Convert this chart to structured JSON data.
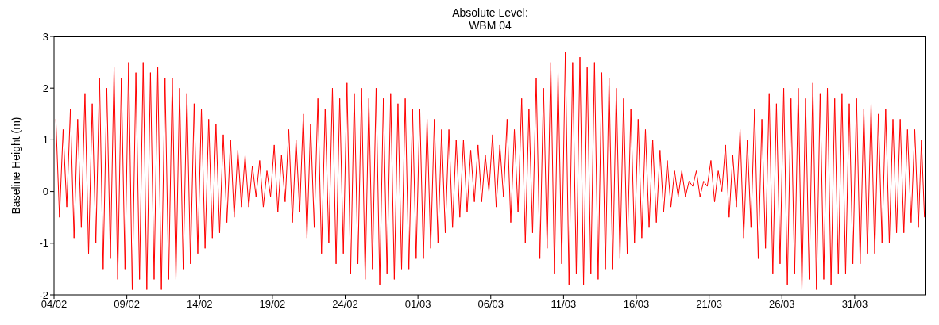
{
  "chart_data": {
    "type": "line",
    "title": "Absolute Level:",
    "subtitle": "WBM 04",
    "ylabel": "Baseline Height (m)",
    "line_style": "solid",
    "xlim": [
      "--02-04",
      "--04-04T22:00"
    ],
    "xticks": [
      {
        "value": "--02-04",
        "label": "04/02"
      },
      {
        "value": "--02-09",
        "label": "09/02"
      },
      {
        "value": "--02-14",
        "label": "14/02"
      },
      {
        "value": "--02-19",
        "label": "19/02"
      },
      {
        "value": "--02-24",
        "label": "24/02"
      },
      {
        "value": "--03-01",
        "label": "01/03"
      },
      {
        "value": "--03-06",
        "label": "06/03"
      },
      {
        "value": "--03-11",
        "label": "11/03"
      },
      {
        "value": "--03-16",
        "label": "16/03"
      },
      {
        "value": "--03-21",
        "label": "21/03"
      },
      {
        "value": "--03-26",
        "label": "26/03"
      },
      {
        "value": "--03-31",
        "label": "31/03"
      }
    ],
    "ylim": [
      -2,
      3
    ],
    "yticks": [
      -2,
      -1,
      0,
      1,
      2,
      3
    ],
    "x": [
      "--02-04T03:00",
      "--02-04T09:00",
      "--02-04T15:00",
      "--02-04T21:00",
      "--02-05T03:00",
      "--02-05T09:00",
      "--02-05T15:00",
      "--02-05T21:00",
      "--02-06T03:00",
      "--02-06T09:00",
      "--02-06T15:00",
      "--02-06T21:00",
      "--02-07T03:00",
      "--02-07T09:00",
      "--02-07T15:00",
      "--02-07T21:00",
      "--02-08T03:00",
      "--02-08T09:00",
      "--02-08T15:00",
      "--02-08T21:00",
      "--02-09T03:00",
      "--02-09T09:00",
      "--02-09T15:00",
      "--02-09T21:00",
      "--02-10T03:00",
      "--02-10T09:00",
      "--02-10T15:00",
      "--02-10T21:00",
      "--02-11T03:00",
      "--02-11T09:00",
      "--02-11T15:00",
      "--02-11T21:00",
      "--02-12T03:00",
      "--02-12T09:00",
      "--02-12T15:00",
      "--02-12T21:00",
      "--02-13T03:00",
      "--02-13T09:00",
      "--02-13T15:00",
      "--02-13T21:00",
      "--02-14T03:00",
      "--02-14T09:00",
      "--02-14T15:00",
      "--02-14T21:00",
      "--02-15T03:00",
      "--02-15T09:00",
      "--02-15T15:00",
      "--02-15T21:00",
      "--02-16T03:00",
      "--02-16T09:00",
      "--02-16T15:00",
      "--02-16T21:00",
      "--02-17T03:00",
      "--02-17T09:00",
      "--02-17T15:00",
      "--02-17T21:00",
      "--02-18T03:00",
      "--02-18T09:00",
      "--02-18T15:00",
      "--02-18T21:00",
      "--02-19T03:00",
      "--02-19T09:00",
      "--02-19T15:00",
      "--02-19T21:00",
      "--02-20T03:00",
      "--02-20T09:00",
      "--02-20T15:00",
      "--02-20T21:00",
      "--02-21T03:00",
      "--02-21T09:00",
      "--02-21T15:00",
      "--02-21T21:00",
      "--02-22T03:00",
      "--02-22T09:00",
      "--02-22T15:00",
      "--02-22T21:00",
      "--02-23T03:00",
      "--02-23T09:00",
      "--02-23T15:00",
      "--02-23T21:00",
      "--02-24T03:00",
      "--02-24T09:00",
      "--02-24T15:00",
      "--02-24T21:00",
      "--02-25T03:00",
      "--02-25T09:00",
      "--02-25T15:00",
      "--02-25T21:00",
      "--02-26T03:00",
      "--02-26T09:00",
      "--02-26T15:00",
      "--02-26T21:00",
      "--02-27T03:00",
      "--02-27T09:00",
      "--02-27T15:00",
      "--02-27T21:00",
      "--02-28T03:00",
      "--02-28T09:00",
      "--02-28T15:00",
      "--02-28T21:00",
      "--03-01T03:00",
      "--03-01T09:00",
      "--03-01T15:00",
      "--03-01T21:00",
      "--03-02T03:00",
      "--03-02T09:00",
      "--03-02T15:00",
      "--03-02T21:00",
      "--03-03T03:00",
      "--03-03T09:00",
      "--03-03T15:00",
      "--03-03T21:00",
      "--03-04T03:00",
      "--03-04T09:00",
      "--03-04T15:00",
      "--03-04T21:00",
      "--03-05T03:00",
      "--03-05T09:00",
      "--03-05T15:00",
      "--03-05T21:00",
      "--03-06T03:00",
      "--03-06T09:00",
      "--03-06T15:00",
      "--03-06T21:00",
      "--03-07T03:00",
      "--03-07T09:00",
      "--03-07T15:00",
      "--03-07T21:00",
      "--03-08T03:00",
      "--03-08T09:00",
      "--03-08T15:00",
      "--03-08T21:00",
      "--03-09T03:00",
      "--03-09T09:00",
      "--03-09T15:00",
      "--03-09T21:00",
      "--03-10T03:00",
      "--03-10T09:00",
      "--03-10T15:00",
      "--03-10T21:00",
      "--03-11T03:00",
      "--03-11T09:00",
      "--03-11T15:00",
      "--03-11T21:00",
      "--03-12T03:00",
      "--03-12T09:00",
      "--03-12T15:00",
      "--03-12T21:00",
      "--03-13T03:00",
      "--03-13T09:00",
      "--03-13T15:00",
      "--03-13T21:00",
      "--03-14T03:00",
      "--03-14T09:00",
      "--03-14T15:00",
      "--03-14T21:00",
      "--03-15T03:00",
      "--03-15T09:00",
      "--03-15T15:00",
      "--03-15T21:00",
      "--03-16T03:00",
      "--03-16T09:00",
      "--03-16T15:00",
      "--03-16T21:00",
      "--03-17T03:00",
      "--03-17T09:00",
      "--03-17T15:00",
      "--03-17T21:00",
      "--03-18T03:00",
      "--03-18T09:00",
      "--03-18T15:00",
      "--03-18T21:00",
      "--03-19T03:00",
      "--03-19T09:00",
      "--03-19T15:00",
      "--03-19T21:00",
      "--03-20T03:00",
      "--03-20T09:00",
      "--03-20T15:00",
      "--03-20T21:00",
      "--03-21T03:00",
      "--03-21T09:00",
      "--03-21T15:00",
      "--03-21T21:00",
      "--03-22T03:00",
      "--03-22T09:00",
      "--03-22T15:00",
      "--03-22T21:00",
      "--03-23T03:00",
      "--03-23T09:00",
      "--03-23T15:00",
      "--03-23T21:00",
      "--03-24T03:00",
      "--03-24T09:00",
      "--03-24T15:00",
      "--03-24T21:00",
      "--03-25T03:00",
      "--03-25T09:00",
      "--03-25T15:00",
      "--03-25T21:00",
      "--03-26T03:00",
      "--03-26T09:00",
      "--03-26T15:00",
      "--03-26T21:00",
      "--03-27T03:00",
      "--03-27T09:00",
      "--03-27T15:00",
      "--03-27T21:00",
      "--03-28T03:00",
      "--03-28T09:00",
      "--03-28T15:00",
      "--03-28T21:00",
      "--03-29T03:00",
      "--03-29T09:00",
      "--03-29T15:00",
      "--03-29T21:00",
      "--03-30T03:00",
      "--03-30T09:00",
      "--03-30T15:00",
      "--03-30T21:00",
      "--03-31T03:00",
      "--03-31T09:00",
      "--03-31T15:00",
      "--03-31T21:00",
      "--04-01T03:00",
      "--04-01T09:00",
      "--04-01T15:00",
      "--04-01T21:00",
      "--04-02T03:00",
      "--04-02T09:00",
      "--04-02T15:00",
      "--04-02T21:00",
      "--04-03T03:00",
      "--04-03T09:00",
      "--04-03T15:00",
      "--04-03T21:00",
      "--04-04T03:00",
      "--04-04T09:00",
      "--04-04T14:00",
      "--04-04T19:00"
    ],
    "series": [
      {
        "color": "#ff0000",
        "values": [
          1.4,
          -0.5,
          1.2,
          -0.3,
          1.6,
          -0.9,
          1.4,
          -0.7,
          1.9,
          -1.2,
          1.7,
          -1.0,
          2.2,
          -1.5,
          2.0,
          -1.3,
          2.4,
          -1.7,
          2.2,
          -1.5,
          2.5,
          -1.9,
          2.3,
          -1.7,
          2.5,
          -1.9,
          2.3,
          -1.7,
          2.4,
          -1.9,
          2.2,
          -1.7,
          2.2,
          -1.7,
          2.0,
          -1.5,
          1.9,
          -1.4,
          1.7,
          -1.2,
          1.6,
          -1.1,
          1.4,
          -0.9,
          1.3,
          -0.8,
          1.1,
          -0.6,
          1.0,
          -0.5,
          0.8,
          -0.3,
          0.7,
          -0.3,
          0.5,
          -0.1,
          0.6,
          -0.3,
          0.4,
          -0.1,
          0.9,
          -0.4,
          0.7,
          -0.2,
          1.2,
          -0.6,
          1.0,
          -0.4,
          1.5,
          -0.9,
          1.3,
          -0.7,
          1.8,
          -1.2,
          1.6,
          -1.0,
          2.0,
          -1.4,
          1.8,
          -1.2,
          2.1,
          -1.6,
          1.9,
          -1.4,
          2.0,
          -1.7,
          1.8,
          -1.5,
          2.0,
          -1.8,
          1.8,
          -1.6,
          1.9,
          -1.7,
          1.7,
          -1.5,
          1.8,
          -1.5,
          1.6,
          -1.3,
          1.6,
          -1.3,
          1.4,
          -1.1,
          1.4,
          -1.0,
          1.2,
          -0.8,
          1.2,
          -0.7,
          1.0,
          -0.5,
          1.0,
          -0.4,
          0.8,
          -0.2,
          0.9,
          -0.2,
          0.7,
          0.0,
          1.1,
          -0.3,
          0.9,
          -0.1,
          1.4,
          -0.6,
          1.2,
          -0.4,
          1.8,
          -1.0,
          1.6,
          -0.8,
          2.2,
          -1.3,
          2.0,
          -1.1,
          2.5,
          -1.6,
          2.3,
          -1.4,
          2.7,
          -1.8,
          2.5,
          -1.6,
          2.6,
          -1.8,
          2.4,
          -1.6,
          2.5,
          -1.7,
          2.3,
          -1.5,
          2.2,
          -1.5,
          2.0,
          -1.3,
          1.8,
          -1.2,
          1.6,
          -1.0,
          1.4,
          -0.9,
          1.2,
          -0.7,
          1.0,
          -0.6,
          0.8,
          -0.4,
          0.6,
          -0.3,
          0.4,
          -0.1,
          0.4,
          -0.1,
          0.2,
          0.1,
          0.4,
          -0.1,
          0.2,
          0.1,
          0.6,
          -0.2,
          0.4,
          0.0,
          0.9,
          -0.5,
          0.7,
          -0.3,
          1.2,
          -0.9,
          1.0,
          -0.7,
          1.6,
          -1.3,
          1.4,
          -1.1,
          1.9,
          -1.6,
          1.7,
          -1.4,
          2.0,
          -1.8,
          1.8,
          -1.6,
          2.0,
          -1.9,
          1.8,
          -1.7,
          2.1,
          -1.9,
          1.9,
          -1.7,
          2.0,
          -1.8,
          1.8,
          -1.6,
          1.9,
          -1.6,
          1.7,
          -1.4,
          1.8,
          -1.4,
          1.6,
          -1.2,
          1.7,
          -1.2,
          1.5,
          -1.0,
          1.6,
          -1.0,
          1.4,
          -0.8,
          1.4,
          -0.8,
          1.2,
          -0.6,
          1.2,
          -0.7,
          1.0,
          -0.5
        ]
      }
    ]
  }
}
